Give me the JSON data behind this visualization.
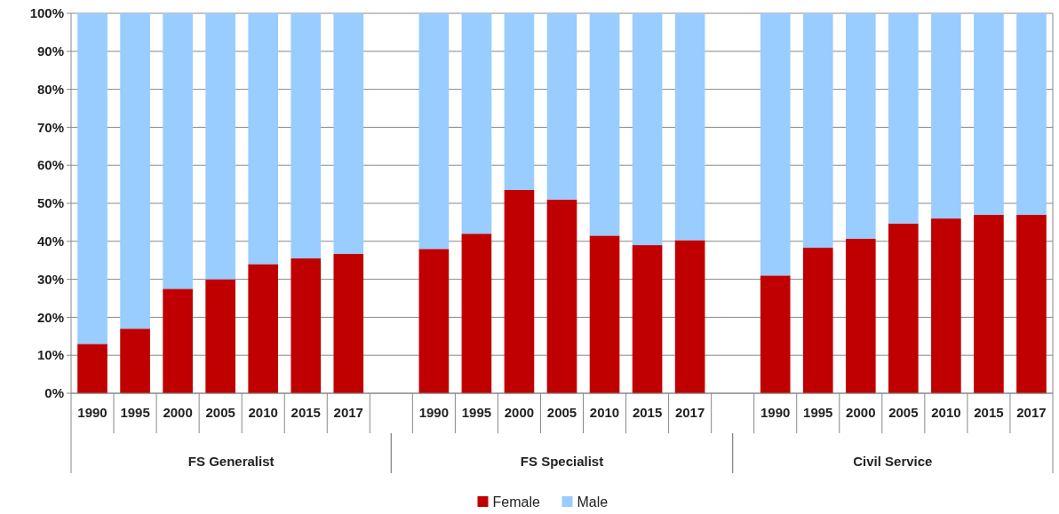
{
  "chart_data": {
    "type": "bar",
    "stacked": true,
    "categories": [
      "1990",
      "1995",
      "2000",
      "2005",
      "2010",
      "2015",
      "2017",
      null,
      "1990",
      "1995",
      "2000",
      "2005",
      "2010",
      "2015",
      "2017",
      null,
      "1990",
      "1995",
      "2000",
      "2005",
      "2010",
      "2015",
      "2017"
    ],
    "series": [
      {
        "name": "Female",
        "color": "#c00000",
        "values": [
          13,
          17,
          27.5,
          30,
          34,
          35.5,
          36.7,
          null,
          38,
          42,
          53.5,
          51,
          41.5,
          39,
          40.3,
          null,
          31,
          38.3,
          40.7,
          44.7,
          46,
          47,
          47
        ]
      },
      {
        "name": "Male",
        "color": "#99ccff",
        "values": [
          87,
          83,
          72.5,
          70,
          66,
          64.5,
          63.3,
          null,
          62,
          58,
          46.5,
          49,
          58.5,
          61,
          59.7,
          null,
          69,
          61.7,
          59.3,
          55.3,
          54,
          53,
          53
        ]
      }
    ],
    "ylim": [
      0,
      100
    ],
    "yticks": [
      {
        "value": 0,
        "label": "0%"
      },
      {
        "value": 10,
        "label": "10%"
      },
      {
        "value": 20,
        "label": "20%"
      },
      {
        "value": 30,
        "label": "30%"
      },
      {
        "value": 40,
        "label": "40%"
      },
      {
        "value": 50,
        "label": "50%"
      },
      {
        "value": 60,
        "label": "60%"
      },
      {
        "value": 70,
        "label": "70%"
      },
      {
        "value": 80,
        "label": "80%"
      },
      {
        "value": 90,
        "label": "90%"
      },
      {
        "value": 100,
        "label": "100%"
      }
    ],
    "grid": "y",
    "legend": "bottom",
    "annotations": [
      "FS Generalist",
      "FS Specialist",
      "Civil Service"
    ]
  }
}
